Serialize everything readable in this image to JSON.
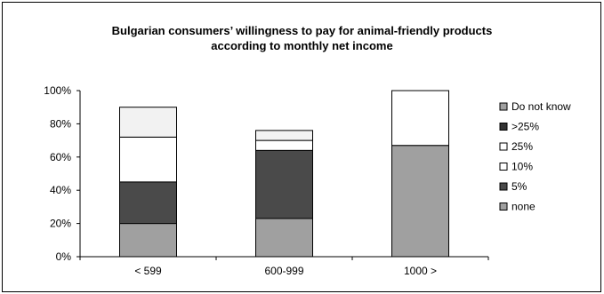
{
  "chart_data": {
    "type": "bar",
    "stacked": true,
    "title": [
      "Bulgarian consumers’ willingness to pay for animal-friendly products",
      "according to monthly net income"
    ],
    "xlabel": "",
    "ylabel": "",
    "categories": [
      "< 599",
      "600-999",
      "1000 >"
    ],
    "ylim": [
      0,
      100
    ],
    "yticks": [
      "0%",
      "20%",
      "40%",
      "60%",
      "80%",
      "100%"
    ],
    "ytick_values": [
      0,
      20,
      40,
      60,
      80,
      100
    ],
    "grid": false,
    "legend_position": "right",
    "series": [
      {
        "name": "none",
        "values": [
          20,
          23,
          67
        ],
        "color": "#a0a0a0"
      },
      {
        "name": "5%",
        "values": [
          25,
          41,
          0
        ],
        "color": "#4a4a4a"
      },
      {
        "name": "10%",
        "values": [
          27,
          6,
          0
        ],
        "color": "#ffffff"
      },
      {
        "name": "25%",
        "values": [
          0,
          0,
          33
        ],
        "color": "#ffffff"
      },
      {
        "name": "> 25%",
        "values": [
          0,
          0,
          0
        ],
        "color": "#ffffff"
      },
      {
        "name": "Do not know",
        "values": [
          18,
          6,
          0
        ],
        "color": "#f2f2f2"
      }
    ],
    "extra_segments_note_removed": true,
    "legend": [
      {
        "label": "Do not know",
        "color": "#a0a0a0"
      },
      {
        "label": ">25%",
        "color": "#333333"
      },
      {
        "label": "25%",
        "color": "#ffffff"
      },
      {
        "label": "10%",
        "color": "#ffffff"
      },
      {
        "label": "5%",
        "color": "#4a4a4a"
      },
      {
        "label": "none",
        "color": "#a0a0a0"
      }
    ]
  }
}
